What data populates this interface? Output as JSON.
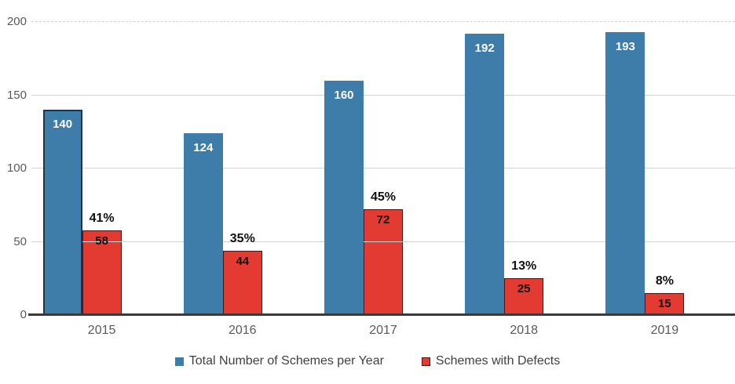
{
  "chart_data": {
    "type": "bar",
    "title": "",
    "categories": [
      "2015",
      "2016",
      "2017",
      "2018",
      "2019"
    ],
    "series": [
      {
        "name": "Total Number of Schemes per Year",
        "color": "#3E7CA9",
        "border_color": "#203448",
        "label_color": "#FFFFFF",
        "values": [
          140,
          124,
          160,
          192,
          193
        ]
      },
      {
        "name": "Schemes with Defects",
        "color": "#E33B32",
        "border_color": "#4F1310",
        "label_color": "#111111",
        "values": [
          58,
          44,
          72,
          25,
          15
        ]
      }
    ],
    "defect_rate_labels": [
      "41%",
      "35%",
      "45%",
      "13%",
      "8%"
    ],
    "ylim": [
      0,
      200
    ],
    "yticks": [
      0,
      50,
      100,
      150,
      200
    ],
    "xlabel": "",
    "ylabel": "",
    "grid": true,
    "top_gridline_style": "dashed",
    "legend_position": "bottom",
    "colors": {
      "background": "#FFFFFF",
      "gridline": "#D2D2D2",
      "baseline": "#3A3A3A",
      "axis_text": "#595959",
      "legend_text": "#404040"
    }
  }
}
